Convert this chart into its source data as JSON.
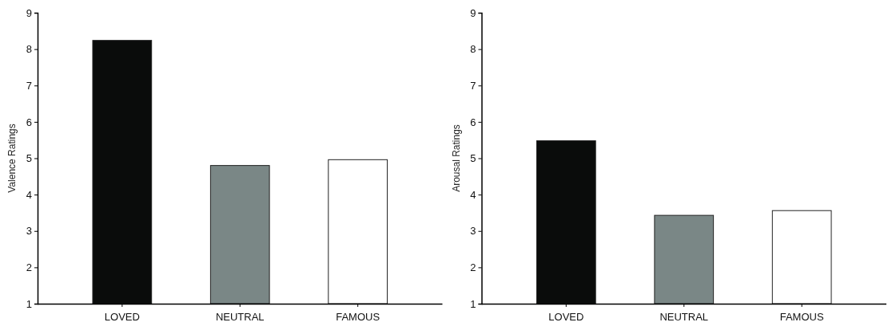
{
  "chart_data": [
    {
      "type": "bar",
      "ylabel": "Valence Ratings",
      "categories": [
        "LOVED",
        "NEUTRAL",
        "FAMOUS"
      ],
      "values": [
        8.24,
        4.8,
        4.96
      ],
      "colors": [
        "#0a0c0b",
        "#7a8786",
        "#ffffff"
      ],
      "ylim": [
        1,
        9
      ],
      "yticks": [
        1,
        2,
        3,
        4,
        5,
        6,
        7,
        8,
        9
      ],
      "grid": false
    },
    {
      "type": "bar",
      "ylabel": "Arousal Ratings",
      "categories": [
        "LOVED",
        "NEUTRAL",
        "FAMOUS"
      ],
      "values": [
        5.48,
        3.43,
        3.56
      ],
      "colors": [
        "#0a0c0b",
        "#7a8786",
        "#ffffff"
      ],
      "ylim": [
        1,
        9
      ],
      "yticks": [
        1,
        2,
        3,
        4,
        5,
        6,
        7,
        8,
        9
      ],
      "grid": false
    }
  ]
}
